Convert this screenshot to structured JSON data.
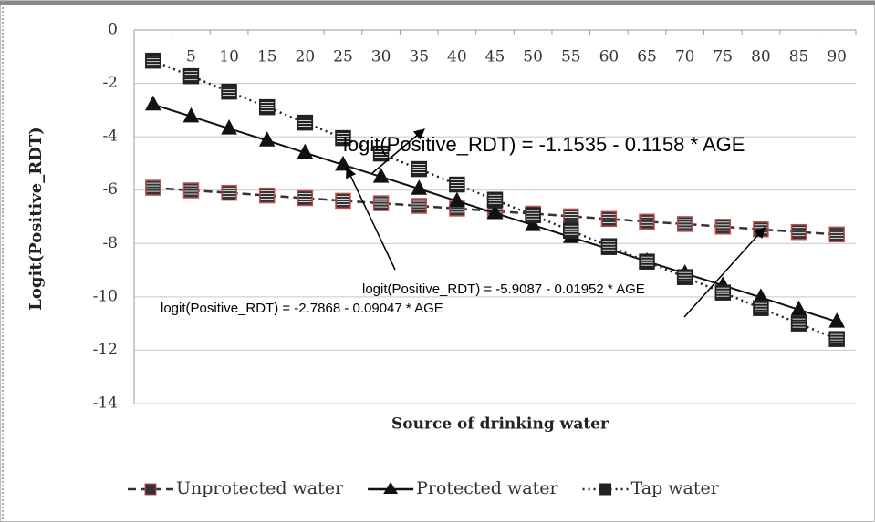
{
  "chart_data": {
    "type": "line",
    "x_label": "Source of drinking water",
    "y_label": "Logit(Positive_RDT)",
    "categories": [
      null,
      5,
      10,
      15,
      20,
      25,
      30,
      35,
      40,
      45,
      50,
      55,
      60,
      65,
      70,
      75,
      80,
      85,
      90
    ],
    "series": [
      {
        "name": "Unprotected water",
        "color": "#333333",
        "marker_edge": "#c0504d",
        "marker": "square",
        "line_style": "dashed",
        "values": [
          -5.91,
          -6.01,
          -6.1,
          -6.2,
          -6.3,
          -6.4,
          -6.49,
          -6.59,
          -6.69,
          -6.79,
          -6.88,
          -6.98,
          -7.08,
          -7.18,
          -7.27,
          -7.37,
          -7.47,
          -7.57,
          -7.66
        ]
      },
      {
        "name": "Protected water",
        "color": "#111111",
        "marker_edge": "#111111",
        "marker": "triangle",
        "line_style": "solid",
        "values": [
          -2.79,
          -3.24,
          -3.69,
          -4.14,
          -4.6,
          -5.05,
          -5.5,
          -5.95,
          -6.41,
          -6.86,
          -7.31,
          -7.76,
          -8.21,
          -8.67,
          -9.12,
          -9.57,
          -10.02,
          -10.48,
          -10.93
        ]
      },
      {
        "name": "Tap water",
        "color": "#222222",
        "marker_edge": "#222222",
        "marker": "square",
        "line_style": "dotted",
        "values": [
          -1.15,
          -1.73,
          -2.31,
          -2.89,
          -3.47,
          -4.05,
          -4.63,
          -5.21,
          -5.79,
          -6.36,
          -6.94,
          -7.52,
          -8.1,
          -8.68,
          -9.26,
          -9.84,
          -10.42,
          -11.0,
          -11.58
        ]
      }
    ],
    "ylim": [
      -14,
      0
    ],
    "yticks": [
      0,
      -2,
      -4,
      -6,
      -8,
      -10,
      -12,
      -14
    ],
    "grid": true,
    "legend": "bottom",
    "annotations": [
      {
        "text": "logit(Positive_RDT) = -1.1535 - 0.1158 * AGE"
      },
      {
        "text": "logit(Positive_RDT) = -5.9087 - 0.01952 * AGE"
      },
      {
        "text": "logit(Positive_RDT) = -2.7868 - 0.09047 * AGE"
      }
    ]
  }
}
